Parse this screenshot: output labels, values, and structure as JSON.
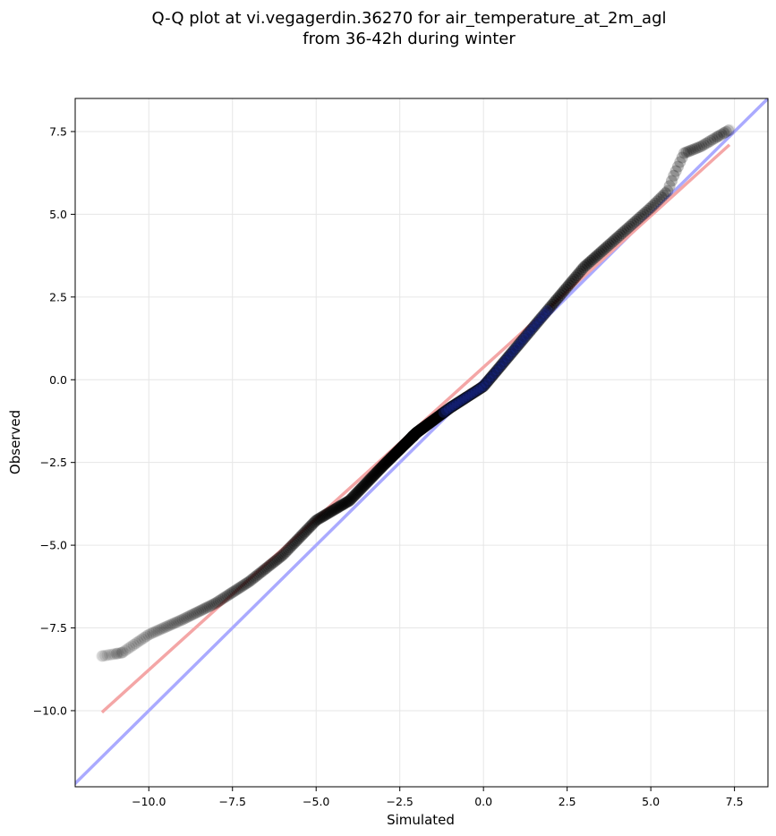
{
  "chart_data": {
    "type": "scatter",
    "title_line1": "Q-Q plot at vi.vegagerdin.36270 for air_temperature_at_2m_agl",
    "title_line2": "from 36-42h during winter",
    "xlabel": "Simulated",
    "ylabel": "Observed",
    "xlim": [
      -12.2,
      8.5
    ],
    "ylim": [
      -12.3,
      8.5
    ],
    "x_ticks": [
      -10.0,
      -7.5,
      -5.0,
      -2.5,
      0.0,
      2.5,
      5.0,
      7.5
    ],
    "x_tick_labels": [
      "−10.0",
      "−7.5",
      "−5.0",
      "−2.5",
      "0.0",
      "2.5",
      "5.0",
      "7.5"
    ],
    "y_ticks": [
      7.5,
      5.0,
      2.5,
      0.0,
      -2.5,
      -5.0,
      -7.5,
      -10.0
    ],
    "y_tick_labels": [
      "7.5",
      "5.0",
      "2.5",
      "0.0",
      "−2.5",
      "−5.0",
      "−7.5",
      "−10.0"
    ],
    "grid": true,
    "identity_line": {
      "color": "#aaaaff"
    },
    "fit_line": {
      "color": "#f4a6a6",
      "from": [
        -11.4,
        -10.05
      ],
      "to": [
        7.35,
        7.1
      ]
    },
    "quantile_curve": {
      "x": [
        -11.4,
        -10.8,
        -10.0,
        -9.0,
        -8.0,
        -7.0,
        -6.0,
        -5.0,
        -4.0,
        -3.0,
        -2.0,
        -1.0,
        0.0,
        1.0,
        2.0,
        3.0,
        4.0,
        5.0,
        5.5,
        5.7,
        6.0,
        6.5,
        7.0,
        7.35
      ],
      "y": [
        -8.35,
        -8.25,
        -7.7,
        -7.25,
        -6.75,
        -6.1,
        -5.3,
        -4.25,
        -3.65,
        -2.6,
        -1.6,
        -0.85,
        -0.2,
        1.0,
        2.2,
        3.4,
        4.3,
        5.2,
        5.7,
        6.2,
        6.85,
        7.05,
        7.35,
        7.55
      ]
    },
    "point_color": "#000000",
    "highlight_color": "#1a2a99"
  }
}
